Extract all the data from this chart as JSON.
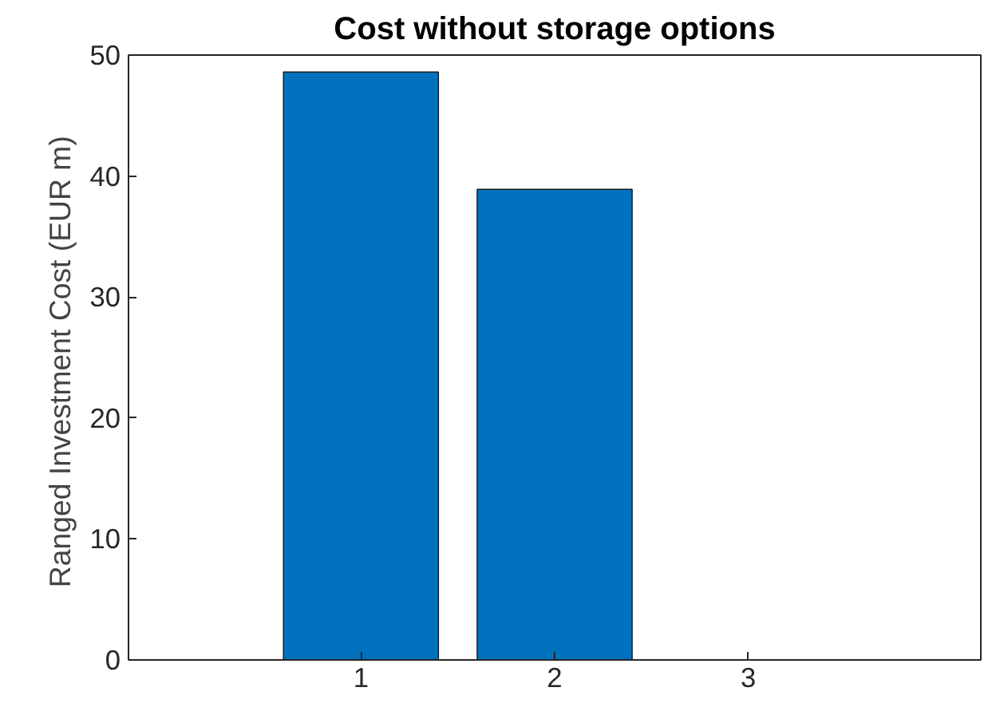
{
  "chart_data": {
    "type": "bar",
    "title": "Cost without storage options",
    "ylabel": "Ranged Investment Cost  (EUR m)",
    "x": [
      1,
      2,
      3
    ],
    "values": [
      48.6,
      38.9,
      0
    ],
    "color": "#0072bd",
    "xlim": [
      -0.2,
      4.2
    ],
    "xticks": [
      1,
      2,
      3
    ],
    "ylim": [
      0,
      50
    ],
    "yticks": [
      0,
      10,
      20,
      30,
      40,
      50
    ],
    "grid": false
  }
}
